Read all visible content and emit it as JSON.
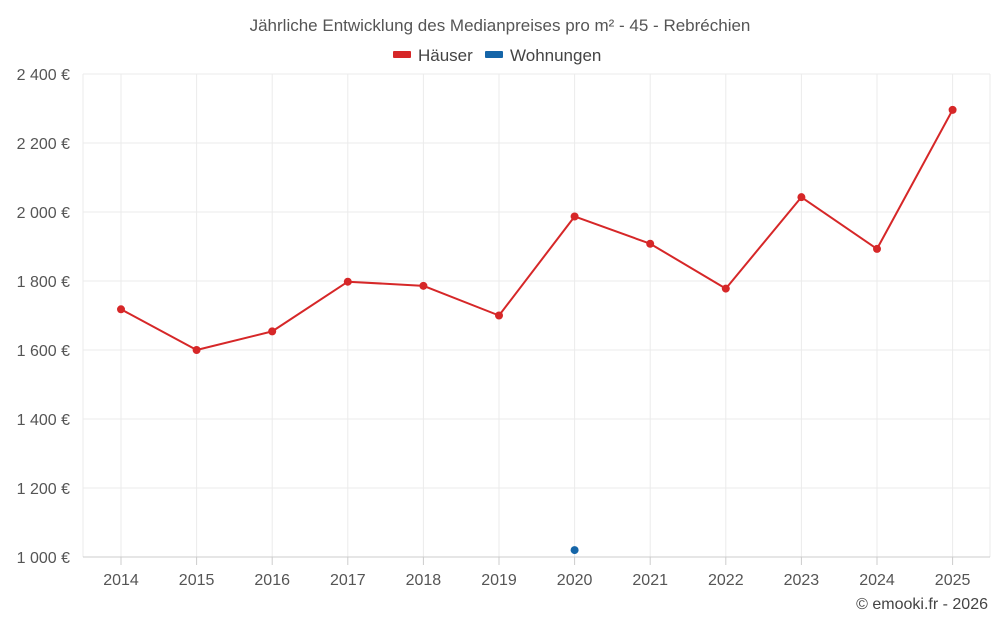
{
  "chart_data": {
    "type": "line",
    "title": "Jährliche Entwicklung des Medianpreises pro m² - 45 - Rebréchien",
    "categories": [
      "2014",
      "2015",
      "2016",
      "2017",
      "2018",
      "2019",
      "2020",
      "2021",
      "2022",
      "2023",
      "2024",
      "2025"
    ],
    "series": [
      {
        "name": "Häuser",
        "color": "#d62728",
        "values": [
          1718,
          1600,
          1654,
          1798,
          1786,
          1700,
          1987,
          1908,
          1778,
          2043,
          1893,
          2296
        ]
      },
      {
        "name": "Wohnungen",
        "color": "#1565a8",
        "values": [
          null,
          null,
          null,
          null,
          null,
          null,
          1020,
          null,
          null,
          null,
          null,
          null
        ]
      }
    ],
    "y_ticks": [
      1000,
      1200,
      1400,
      1600,
      1800,
      2000,
      2200,
      2400
    ],
    "y_tick_labels": [
      "1 000 €",
      "1 200 €",
      "1 400 €",
      "1 600 €",
      "1 800 €",
      "2 000 €",
      "2 200 €",
      "2 400 €"
    ],
    "ylim": [
      1000,
      2400
    ],
    "xlabel": "",
    "ylabel": "",
    "grid": true,
    "legend_position": "top-center"
  },
  "credit": "© emooki.fr - 2026"
}
